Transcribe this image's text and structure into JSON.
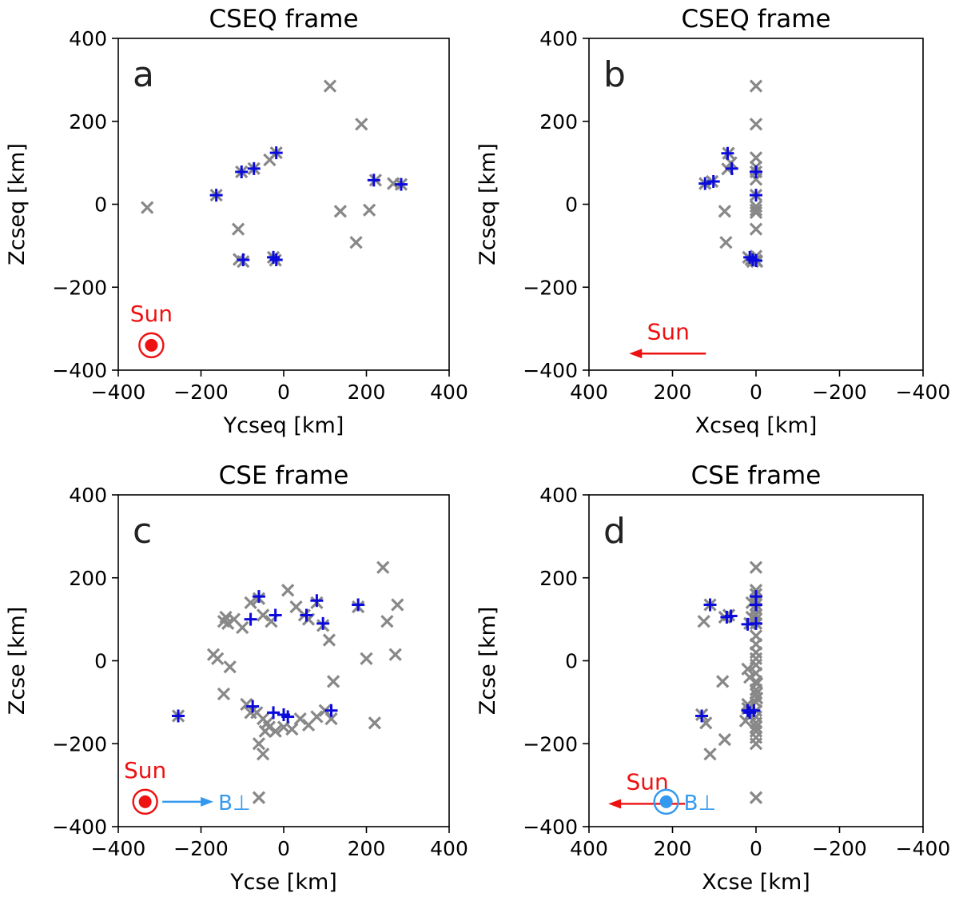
{
  "chart_data": [
    {
      "type": "scatter",
      "panel_label": "a",
      "title": "CSEQ frame",
      "xlabel": "Ycseq [km]",
      "ylabel": "Zcseq [km]",
      "xlim": [
        -400,
        400
      ],
      "ylim": [
        -400,
        400
      ],
      "x_reversed": false,
      "xticks": [
        -400,
        -200,
        0,
        200,
        400
      ],
      "yticks": [
        -400,
        -200,
        0,
        200,
        400
      ],
      "x_tick_labels": [
        "−400",
        "−200",
        "0",
        "200",
        "400"
      ],
      "y_tick_labels": [
        "−400",
        "−200",
        "0",
        "200",
        "400"
      ],
      "series": [
        {
          "name": "all",
          "marker": "x",
          "color": "#888888",
          "points": [
            [
              112,
              285
            ],
            [
              188,
              193
            ],
            [
              -330,
              -8
            ],
            [
              -163,
              22
            ],
            [
              -102,
              78
            ],
            [
              -72,
              86
            ],
            [
              -34,
              107
            ],
            [
              -18,
              124
            ],
            [
              222,
              58
            ],
            [
              265,
              50
            ],
            [
              284,
              48
            ],
            [
              137,
              -17
            ],
            [
              207,
              -14
            ],
            [
              175,
              -92
            ],
            [
              -110,
              -60
            ],
            [
              -108,
              -133
            ],
            [
              -98,
              -138
            ],
            [
              -25,
              -128
            ],
            [
              -20,
              -135
            ]
          ]
        },
        {
          "name": "selected",
          "marker": "+",
          "color": "#0a0adc",
          "points": [
            [
              -163,
              22
            ],
            [
              -102,
              78
            ],
            [
              -72,
              86
            ],
            [
              -18,
              124
            ],
            [
              218,
              58
            ],
            [
              284,
              48
            ],
            [
              -98,
              -134
            ],
            [
              -25,
              -128
            ],
            [
              -18,
              -134
            ]
          ]
        }
      ],
      "annotations": [
        {
          "text": "Sun",
          "color": "#ee1111",
          "symbol": "sun-out-of-page",
          "at": [
            -320,
            -340
          ]
        }
      ]
    },
    {
      "type": "scatter",
      "panel_label": "b",
      "title": "CSEQ frame",
      "xlabel": "Xcseq [km]",
      "ylabel": "Zcseq [km]",
      "xlim": [
        400,
        -400
      ],
      "ylim": [
        -400,
        400
      ],
      "x_reversed": true,
      "xticks": [
        400,
        200,
        0,
        -200,
        -400
      ],
      "yticks": [
        -400,
        -200,
        0,
        200,
        400
      ],
      "x_tick_labels": [
        "400",
        "200",
        "0",
        "−200",
        "−400"
      ],
      "y_tick_labels": [
        "−400",
        "−200",
        "0",
        "200",
        "400"
      ],
      "series": [
        {
          "name": "all",
          "marker": "x",
          "color": "#888888",
          "points": [
            [
              0,
              285
            ],
            [
              0,
              193
            ],
            [
              0,
              112
            ],
            [
              0,
              90
            ],
            [
              0,
              78
            ],
            [
              0,
              60
            ],
            [
              0,
              22
            ],
            [
              0,
              -5
            ],
            [
              0,
              -14
            ],
            [
              0,
              -20
            ],
            [
              0,
              -60
            ],
            [
              0,
              -125
            ],
            [
              0,
              -135
            ],
            [
              -2,
              -138
            ],
            [
              66,
              123
            ],
            [
              60,
              100
            ],
            [
              68,
              85
            ],
            [
              122,
              50
            ],
            [
              105,
              55
            ],
            [
              75,
              -17
            ],
            [
              72,
              -92
            ],
            [
              18,
              -128
            ],
            [
              12,
              -133
            ],
            [
              8,
              -138
            ]
          ]
        },
        {
          "name": "selected",
          "marker": "+",
          "color": "#0a0adc",
          "points": [
            [
              68,
              123
            ],
            [
              58,
              86
            ],
            [
              122,
              50
            ],
            [
              102,
              55
            ],
            [
              0,
              78
            ],
            [
              0,
              22
            ],
            [
              15,
              -128
            ],
            [
              8,
              -134
            ],
            [
              0,
              -136
            ]
          ]
        }
      ],
      "annotations": [
        {
          "text": "Sun",
          "color": "#ee1111",
          "symbol": "sun-arrow-left",
          "at": [
            210,
            -360
          ]
        }
      ]
    },
    {
      "type": "scatter",
      "panel_label": "c",
      "title": "CSE frame",
      "xlabel": "Ycse [km]",
      "ylabel": "Zcse [km]",
      "xlim": [
        -400,
        400
      ],
      "ylim": [
        -400,
        400
      ],
      "x_reversed": false,
      "xticks": [
        -400,
        -200,
        0,
        200,
        400
      ],
      "yticks": [
        -400,
        -200,
        0,
        200,
        400
      ],
      "x_tick_labels": [
        "−400",
        "−200",
        "0",
        "200",
        "400"
      ],
      "y_tick_labels": [
        "−400",
        "−200",
        "0",
        "200",
        "400"
      ],
      "series": [
        {
          "name": "all",
          "marker": "x",
          "color": "#888888",
          "points": [
            [
              -255,
              -133
            ],
            [
              -170,
              15
            ],
            [
              -160,
              5
            ],
            [
              -145,
              95
            ],
            [
              -140,
              105
            ],
            [
              -135,
              90
            ],
            [
              -130,
              -15
            ],
            [
              -145,
              -80
            ],
            [
              -120,
              100
            ],
            [
              -100,
              80
            ],
            [
              -80,
              140
            ],
            [
              -60,
              150
            ],
            [
              -50,
              110
            ],
            [
              -30,
              95
            ],
            [
              10,
              170
            ],
            [
              30,
              130
            ],
            [
              50,
              110
            ],
            [
              60,
              100
            ],
            [
              80,
              140
            ],
            [
              95,
              85
            ],
            [
              110,
              50
            ],
            [
              120,
              -50
            ],
            [
              115,
              -140
            ],
            [
              100,
              -120
            ],
            [
              80,
              -135
            ],
            [
              60,
              -155
            ],
            [
              40,
              -140
            ],
            [
              20,
              -165
            ],
            [
              0,
              -160
            ],
            [
              -20,
              -170
            ],
            [
              -35,
              -160
            ],
            [
              -50,
              -140
            ],
            [
              -65,
              -125
            ],
            [
              -80,
              -125
            ],
            [
              -90,
              -105
            ],
            [
              -60,
              -200
            ],
            [
              -40,
              -150
            ],
            [
              -45,
              -170
            ],
            [
              -50,
              -225
            ],
            [
              -60,
              -330
            ],
            [
              180,
              130
            ],
            [
              200,
              5
            ],
            [
              220,
              -150
            ],
            [
              240,
              225
            ],
            [
              250,
              95
            ],
            [
              275,
              135
            ],
            [
              270,
              15
            ]
          ]
        },
        {
          "name": "selected",
          "marker": "+",
          "color": "#0a0adc",
          "points": [
            [
              -255,
              -133
            ],
            [
              -80,
              100
            ],
            [
              -60,
              155
            ],
            [
              -20,
              110
            ],
            [
              55,
              110
            ],
            [
              80,
              145
            ],
            [
              95,
              90
            ],
            [
              180,
              135
            ],
            [
              -75,
              -110
            ],
            [
              -25,
              -125
            ],
            [
              0,
              -130
            ],
            [
              10,
              -135
            ],
            [
              115,
              -120
            ]
          ]
        }
      ],
      "annotations": [
        {
          "text": "Sun",
          "color": "#ee1111",
          "symbol": "sun-out-of-page",
          "at": [
            -335,
            -340
          ]
        },
        {
          "text": "B⊥",
          "color": "#3399ee",
          "symbol": "arrow-right",
          "at": [
            -220,
            -340
          ]
        }
      ]
    },
    {
      "type": "scatter",
      "panel_label": "d",
      "title": "CSE frame",
      "xlabel": "Xcse [km]",
      "ylabel": "Zcse [km]",
      "xlim": [
        400,
        -400
      ],
      "ylim": [
        -400,
        400
      ],
      "x_reversed": true,
      "xticks": [
        400,
        200,
        0,
        -200,
        -400
      ],
      "yticks": [
        -400,
        -200,
        0,
        200,
        400
      ],
      "x_tick_labels": [
        "400",
        "200",
        "0",
        "−200",
        "−400"
      ],
      "y_tick_labels": [
        "−400",
        "−200",
        "0",
        "200",
        "400"
      ],
      "series": [
        {
          "name": "all",
          "marker": "x",
          "color": "#888888",
          "points": [
            [
              0,
              225
            ],
            [
              0,
              170
            ],
            [
              0,
              160
            ],
            [
              0,
              145
            ],
            [
              0,
              135
            ],
            [
              0,
              125
            ],
            [
              0,
              110
            ],
            [
              0,
              100
            ],
            [
              0,
              90
            ],
            [
              0,
              60
            ],
            [
              0,
              40
            ],
            [
              0,
              20
            ],
            [
              0,
              5
            ],
            [
              0,
              -10
            ],
            [
              0,
              -30
            ],
            [
              0,
              -50
            ],
            [
              0,
              -70
            ],
            [
              0,
              -80
            ],
            [
              0,
              -100
            ],
            [
              0,
              -120
            ],
            [
              0,
              -135
            ],
            [
              0,
              -150
            ],
            [
              0,
              -160
            ],
            [
              0,
              -170
            ],
            [
              0,
              -185
            ],
            [
              0,
              -200
            ],
            [
              0,
              -330
            ],
            [
              -2,
              -90
            ],
            [
              -2,
              -55
            ],
            [
              10,
              140
            ],
            [
              10,
              105
            ],
            [
              15,
              90
            ],
            [
              20,
              -20
            ],
            [
              15,
              -40
            ],
            [
              20,
              -105
            ],
            [
              20,
              -115
            ],
            [
              15,
              -130
            ],
            [
              25,
              -145
            ],
            [
              110,
              135
            ],
            [
              125,
              95
            ],
            [
              75,
              105
            ],
            [
              65,
              110
            ],
            [
              80,
              -50
            ],
            [
              75,
              -190
            ],
            [
              110,
              -225
            ],
            [
              130,
              -130
            ],
            [
              120,
              -150
            ]
          ]
        },
        {
          "name": "selected",
          "marker": "+",
          "color": "#0a0adc",
          "points": [
            [
              0,
              155
            ],
            [
              0,
              135
            ],
            [
              0,
              90
            ],
            [
              20,
              88
            ],
            [
              70,
              105
            ],
            [
              60,
              108
            ],
            [
              110,
              135
            ],
            [
              130,
              -133
            ],
            [
              20,
              -120
            ],
            [
              15,
              -125
            ],
            [
              5,
              -120
            ]
          ]
        }
      ],
      "annotations": [
        {
          "text": "Sun",
          "color": "#ee1111",
          "symbol": "sun-arrow-left",
          "at": [
            260,
            -345
          ]
        },
        {
          "text": "B⊥",
          "color": "#3399ee",
          "symbol": "field-out-of-page",
          "at": [
            215,
            -340
          ]
        }
      ]
    }
  ]
}
